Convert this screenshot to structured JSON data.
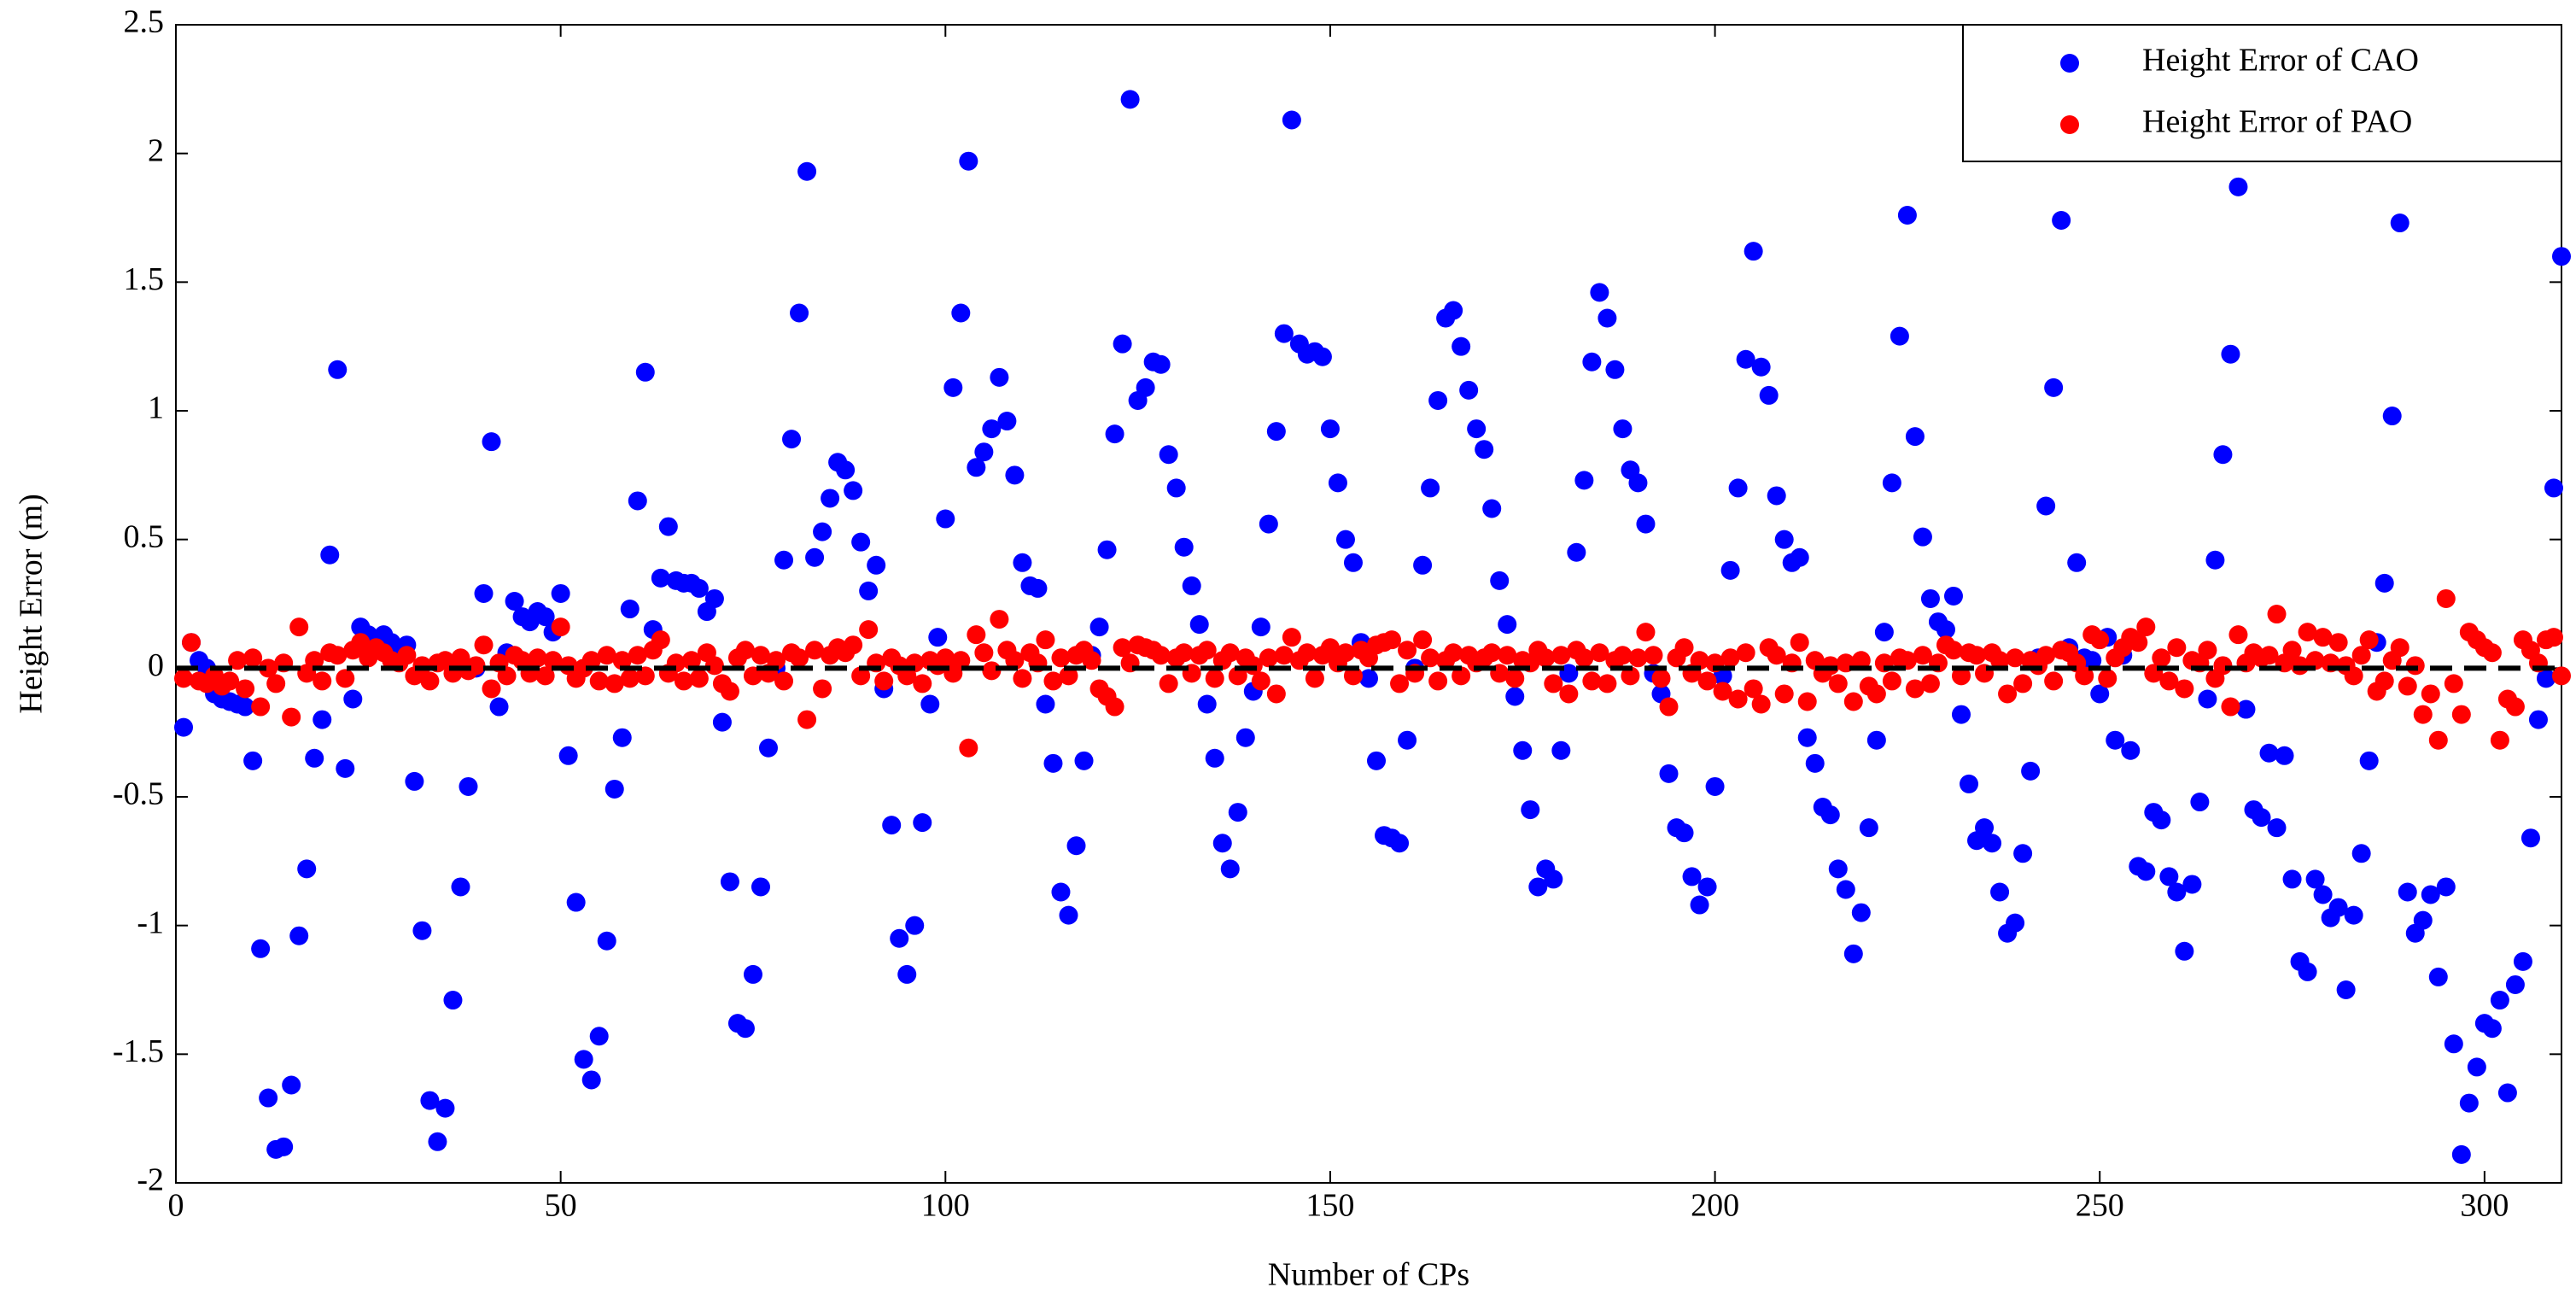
{
  "chart_data": {
    "type": "scatter",
    "xlabel": "Number of CPs",
    "ylabel": "Height Error (m)",
    "xlim": [
      0,
      310
    ],
    "xticks": [
      0,
      50,
      100,
      150,
      200,
      250,
      300
    ],
    "ylim": [
      -2,
      2.5
    ],
    "yticks": [
      -2,
      -1.5,
      -1,
      -0.5,
      0,
      0.5,
      1,
      1.5,
      2,
      2.5
    ],
    "reference_line": {
      "value": 0,
      "color": "#000000"
    },
    "legend": "upper right",
    "x": [
      1,
      2,
      3,
      4,
      5,
      6,
      7,
      8,
      9,
      10,
      11,
      12,
      13,
      14,
      15,
      16,
      17,
      18,
      19,
      20,
      21,
      22,
      23,
      24,
      25,
      26,
      27,
      28,
      29,
      30,
      31,
      32,
      33,
      34,
      35,
      36,
      37,
      38,
      39,
      40,
      41,
      42,
      43,
      44,
      45,
      46,
      47,
      48,
      49,
      50,
      51,
      52,
      53,
      54,
      55,
      56,
      57,
      58,
      59,
      60,
      61,
      62,
      63,
      64,
      65,
      66,
      67,
      68,
      69,
      70,
      71,
      72,
      73,
      74,
      75,
      76,
      77,
      78,
      79,
      80,
      81,
      82,
      83,
      84,
      85,
      86,
      87,
      88,
      89,
      90,
      91,
      92,
      93,
      94,
      95,
      96,
      97,
      98,
      99,
      100,
      101,
      102,
      103,
      104,
      105,
      106,
      107,
      108,
      109,
      110,
      111,
      112,
      113,
      114,
      115,
      116,
      117,
      118,
      119,
      120,
      121,
      122,
      123,
      124,
      125,
      126,
      127,
      128,
      129,
      130,
      131,
      132,
      133,
      134,
      135,
      136,
      137,
      138,
      139,
      140,
      141,
      142,
      143,
      144,
      145,
      146,
      147,
      148,
      149,
      150,
      151,
      152,
      153,
      154,
      155,
      156,
      157,
      158,
      159,
      160,
      161,
      162,
      163,
      164,
      165,
      166,
      167,
      168,
      169,
      170,
      171,
      172,
      173,
      174,
      175,
      176,
      177,
      178,
      179,
      180,
      181,
      182,
      183,
      184,
      185,
      186,
      187,
      188,
      189,
      190,
      191,
      192,
      193,
      194,
      195,
      196,
      197,
      198,
      199,
      200,
      201,
      202,
      203,
      204,
      205,
      206,
      207,
      208,
      209,
      210,
      211,
      212,
      213,
      214,
      215,
      216,
      217,
      218,
      219,
      220,
      221,
      222,
      223,
      224,
      225,
      226,
      227,
      228,
      229,
      230,
      231,
      232,
      233,
      234,
      235,
      236,
      237,
      238,
      239,
      240,
      241,
      242,
      243,
      244,
      245,
      246,
      247,
      248,
      249,
      250,
      251,
      252,
      253,
      254,
      255,
      256,
      257,
      258,
      259,
      260,
      261,
      262,
      263,
      264,
      265,
      266,
      267,
      268,
      269,
      270,
      271,
      272,
      273,
      274,
      275,
      276,
      277,
      278,
      279,
      280,
      281,
      282,
      283,
      284,
      285,
      286,
      287,
      288,
      289,
      290,
      291,
      292,
      293,
      294,
      295,
      296,
      297,
      298,
      299,
      300,
      301,
      302,
      303,
      304,
      305,
      306,
      307,
      308,
      309,
      310
    ],
    "series": [
      {
        "name": "Height Error of CAO",
        "color": "#0000ff",
        "values": [
          -0.23,
          0.1,
          0.03,
          0,
          -0.1,
          -0.12,
          -0.13,
          -0.14,
          -0.15,
          -0.36,
          -1.09,
          -1.67,
          -1.87,
          -1.86,
          -1.62,
          -1.04,
          -0.78,
          -0.35,
          -0.2,
          0.44,
          1.16,
          -0.39,
          -0.12,
          0.16,
          0.13,
          0.1,
          0.13,
          0.1,
          0.05,
          0.09,
          -0.44,
          -1.02,
          -1.68,
          -1.84,
          -1.71,
          -1.29,
          -0.85,
          -0.46,
          0,
          0.29,
          0.88,
          -0.15,
          0.06,
          0.26,
          0.2,
          0.18,
          0.22,
          0.2,
          0.14,
          0.29,
          -0.34,
          -0.91,
          -1.52,
          -1.6,
          -1.43,
          -1.06,
          -0.47,
          -0.27,
          0.23,
          0.65,
          1.15,
          0.15,
          0.35,
          0.55,
          0.34,
          0.33,
          0.33,
          0.31,
          0.22,
          0.27,
          -0.21,
          -0.83,
          -1.38,
          -1.4,
          -1.19,
          -0.85,
          -0.31,
          0,
          0.42,
          0.89,
          1.38,
          1.93,
          0.43,
          0.53,
          0.66,
          0.8,
          0.77,
          0.69,
          0.49,
          0.3,
          0.4,
          -0.08,
          -0.61,
          -1.05,
          -1.19,
          -1,
          -0.6,
          -0.14,
          0.12,
          0.58,
          1.09,
          1.38,
          1.97,
          0.78,
          0.84,
          0.93,
          1.13,
          0.96,
          0.75,
          0.41,
          0.32,
          0.31,
          -0.14,
          -0.37,
          -0.87,
          -0.96,
          -0.69,
          -0.36,
          0.05,
          0.16,
          0.46,
          0.91,
          1.26,
          2.21,
          1.04,
          1.09,
          1.19,
          1.18,
          0.83,
          0.7,
          0.47,
          0.32,
          0.17,
          -0.14,
          -0.35,
          -0.68,
          -0.78,
          -0.56,
          -0.27,
          -0.09,
          0.16,
          0.56,
          0.92,
          1.3,
          2.13,
          1.26,
          1.22,
          1.23,
          1.21,
          0.93,
          0.72,
          0.5,
          0.41,
          0.1,
          -0.04,
          -0.36,
          -0.65,
          -0.66,
          -0.68,
          -0.28,
          0,
          0.4,
          0.7,
          1.04,
          1.36,
          1.39,
          1.25,
          1.08,
          0.93,
          0.85,
          0.62,
          0.34,
          0.17,
          -0.11,
          -0.32,
          -0.55,
          -0.85,
          -0.78,
          -0.82,
          -0.32,
          -0.02,
          0.45,
          0.73,
          1.19,
          1.46,
          1.36,
          1.16,
          0.93,
          0.77,
          0.72,
          0.56,
          -0.02,
          -0.1,
          -0.41,
          -0.62,
          -0.64,
          -0.81,
          -0.92,
          -0.85,
          -0.46,
          -0.03,
          0.38,
          0.7,
          1.2,
          1.62,
          1.17,
          1.06,
          0.67,
          0.5,
          0.41,
          0.43,
          -0.27,
          -0.37,
          -0.54,
          -0.57,
          -0.78,
          -0.86,
          -1.11,
          -0.95,
          -0.62,
          -0.28,
          0.14,
          0.72,
          1.29,
          1.76,
          0.9,
          0.51,
          0.27,
          0.18,
          0.15,
          0.28,
          -0.18,
          -0.45,
          -0.67,
          -0.62,
          -0.68,
          -0.87,
          -1.03,
          -0.99,
          -0.72,
          -0.4,
          0.04,
          0.63,
          1.09,
          1.74,
          0.08,
          0.41,
          0.04,
          0.03,
          -0.1,
          0.12,
          -0.28,
          0.05,
          -0.32,
          -0.77,
          -0.79,
          -0.56,
          -0.59,
          -0.81,
          -0.87,
          -1.1,
          -0.84,
          -0.52,
          -0.12,
          0.42,
          0.83,
          1.22,
          1.87,
          -0.16,
          -0.55,
          -0.58,
          -0.33,
          -0.62,
          -0.34,
          -0.82,
          -1.14,
          -1.18,
          -0.82,
          -0.88,
          -0.97,
          -0.93,
          -1.25,
          -0.96,
          -0.72,
          -0.36,
          0.1,
          0.33,
          0.98,
          1.73,
          -0.87,
          -1.03,
          -0.98,
          -0.88,
          -1.2,
          -0.85,
          -1.46,
          -1.89,
          -1.69,
          -1.55,
          -1.38,
          -1.4,
          -1.29,
          -1.65,
          -1.23,
          -1.14,
          -0.66,
          -0.2,
          -0.04,
          0.7,
          1.6
        ]
      },
      {
        "name": "Height Error of PAO",
        "color": "#ff0000",
        "values": [
          -0.04,
          0.1,
          -0.05,
          -0.06,
          -0.03,
          -0.07,
          -0.05,
          0.03,
          -0.08,
          0.04,
          -0.15,
          0,
          -0.06,
          0.02,
          -0.19,
          0.16,
          -0.02,
          0.03,
          -0.05,
          0.06,
          0.05,
          -0.04,
          0.07,
          0.1,
          0.04,
          0.08,
          0.06,
          0.03,
          0.02,
          0.05,
          -0.03,
          0.01,
          -0.05,
          0.02,
          0.03,
          -0.02,
          0.04,
          -0.01,
          0.01,
          0.09,
          -0.08,
          0.02,
          -0.03,
          0.05,
          0.03,
          -0.02,
          0.04,
          -0.03,
          0.03,
          0.16,
          0.01,
          -0.04,
          0,
          0.03,
          -0.05,
          0.05,
          -0.06,
          0.03,
          -0.04,
          0.05,
          -0.03,
          0.07,
          0.11,
          -0.02,
          0.02,
          -0.05,
          0.03,
          -0.04,
          0.06,
          0.01,
          -0.06,
          -0.09,
          0.04,
          0.07,
          -0.03,
          0.05,
          -0.02,
          0.03,
          -0.05,
          0.06,
          0.04,
          -0.2,
          0.07,
          -0.08,
          0.05,
          0.08,
          0.06,
          0.09,
          -0.03,
          0.15,
          0.02,
          -0.05,
          0.04,
          0.01,
          -0.03,
          0.02,
          -0.06,
          0.03,
          0.01,
          0.04,
          -0.02,
          0.03,
          -0.31,
          0.13,
          0.06,
          -0.01,
          0.19,
          0.07,
          0.03,
          -0.04,
          0.06,
          0.02,
          0.11,
          -0.05,
          0.04,
          -0.03,
          0.05,
          0.07,
          0.03,
          -0.08,
          -0.11,
          -0.15,
          0.08,
          0.02,
          0.09,
          0.08,
          0.07,
          0.05,
          -0.06,
          0.04,
          0.06,
          -0.02,
          0.05,
          0.07,
          -0.04,
          0.03,
          0.06,
          -0.03,
          0.04,
          0.01,
          -0.05,
          0.04,
          -0.1,
          0.05,
          0.12,
          0.03,
          0.06,
          -0.04,
          0.05,
          0.08,
          0.02,
          0.06,
          -0.03,
          0.07,
          0.04,
          0.09,
          0.1,
          0.11,
          -0.06,
          0.07,
          -0.02,
          0.11,
          0.04,
          -0.05,
          0.03,
          0.06,
          -0.03,
          0.05,
          0.02,
          0.04,
          0.06,
          -0.02,
          0.05,
          -0.04,
          0.03,
          0.02,
          0.07,
          0.04,
          -0.06,
          0.05,
          -0.1,
          0.07,
          0.04,
          -0.05,
          0.06,
          -0.06,
          0.03,
          0.05,
          -0.03,
          0.04,
          0.14,
          0.05,
          -0.04,
          -0.15,
          0.04,
          0.08,
          -0.02,
          0.03,
          -0.05,
          0.02,
          -0.09,
          0.04,
          -0.12,
          0.06,
          -0.08,
          -0.14,
          0.08,
          0.05,
          -0.1,
          0.02,
          0.1,
          -0.13,
          0.03,
          -0.02,
          0.01,
          -0.06,
          0.02,
          -0.13,
          0.03,
          -0.07,
          -0.1,
          0.02,
          -0.05,
          0.04,
          0.03,
          -0.08,
          0.05,
          -0.06,
          0.02,
          0.09,
          0.07,
          -0.03,
          0.06,
          0.05,
          -0.02,
          0.06,
          0.03,
          -0.1,
          0.04,
          -0.06,
          0.03,
          0.01,
          0.05,
          -0.05,
          0.07,
          0.06,
          0.02,
          -0.03,
          0.13,
          0.11,
          -0.04,
          0.04,
          0.08,
          0.12,
          0.1,
          0.16,
          -0.02,
          0.04,
          -0.05,
          0.08,
          -0.08,
          0.03,
          0.02,
          0.07,
          -0.04,
          0.01,
          -0.15,
          0.13,
          0.02,
          0.06,
          0.04,
          0.05,
          0.21,
          0.02,
          0.07,
          0.01,
          0.14,
          0.03,
          0.12,
          0.02,
          0.1,
          0.01,
          -0.03,
          0.05,
          0.11,
          -0.09,
          -0.05,
          0.03,
          0.08,
          -0.07,
          0.01,
          -0.18,
          -0.1,
          -0.28,
          0.27,
          -0.06,
          -0.18,
          0.14,
          0.11,
          0.08,
          0.06,
          -0.28,
          -0.12,
          -0.15,
          0.11,
          0.07,
          0.02,
          0.11,
          0.12,
          -0.03
        ]
      }
    ]
  }
}
